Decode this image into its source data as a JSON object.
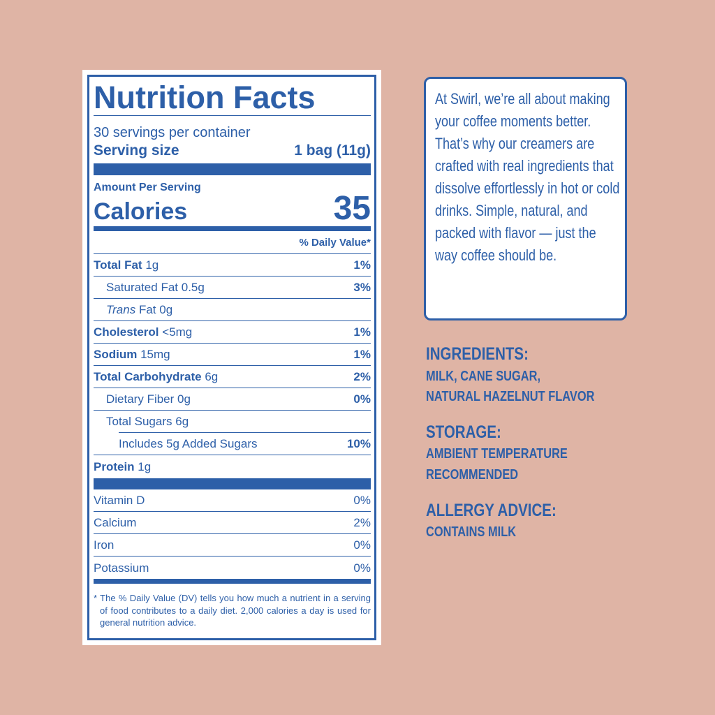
{
  "nutrition_facts": {
    "title": "Nutrition Facts",
    "servings": "30 servings per container",
    "serving_size_label": "Serving size",
    "serving_size_value": "1 bag (11g)",
    "amount_per_serving": "Amount Per Serving",
    "calories_label": "Calories",
    "calories": 35,
    "daily_value_header": "% Daily Value*",
    "nutrients": [
      {
        "name": "Total Fat",
        "amount": "1g",
        "dv": "1%"
      },
      {
        "name": "Saturated Fat",
        "amount": "0.5g",
        "dv": "3%"
      },
      {
        "prefix": "Trans",
        "name": "Fat",
        "amount": "0g"
      },
      {
        "name": "Cholesterol",
        "amount": "<5mg",
        "dv": "1%"
      },
      {
        "name": "Sodium",
        "amount": "15mg",
        "dv": "1%"
      },
      {
        "name": "Total Carbohydrate",
        "amount": "6g",
        "dv": "2%"
      },
      {
        "name": "Dietary Fiber",
        "amount": "0g",
        "dv": "0%"
      },
      {
        "name": "Total Sugars",
        "amount": "6g"
      },
      {
        "name": "Includes 5g Added Sugars",
        "dv": "10%"
      },
      {
        "name": "Protein",
        "amount": "1g"
      }
    ],
    "vitamins": [
      {
        "name": "Vitamin D",
        "dv": "0%"
      },
      {
        "name": "Calcium",
        "dv": "2%"
      },
      {
        "name": "Iron",
        "dv": "0%"
      },
      {
        "name": "Potassium",
        "dv": "0%"
      }
    ],
    "footnote": "* The % Daily Value (DV) tells you how much a nutrient in a serving of food contributes to a daily diet. 2,000 calories a day is used for general nutrition advice."
  },
  "description": "At Swirl, we’re all about making your coffee moments better. That’s why our creamers are crafted with real ingredients that dissolve effortlessly in hot or cold drinks. Simple, natural, and packed with flavor — just the way coffee should be.",
  "sections": [
    {
      "heading": "INGREDIENTS:",
      "lines": [
        "MILK, CANE SUGAR,",
        "NATURAL HAZELNUT FLAVOR"
      ]
    },
    {
      "heading": "STORAGE:",
      "lines": [
        "AMBIENT TEMPERATURE",
        "RECOMMENDED"
      ]
    },
    {
      "heading": "ALLERGY ADVICE:",
      "lines": [
        "CONTAINS MILK"
      ]
    }
  ]
}
